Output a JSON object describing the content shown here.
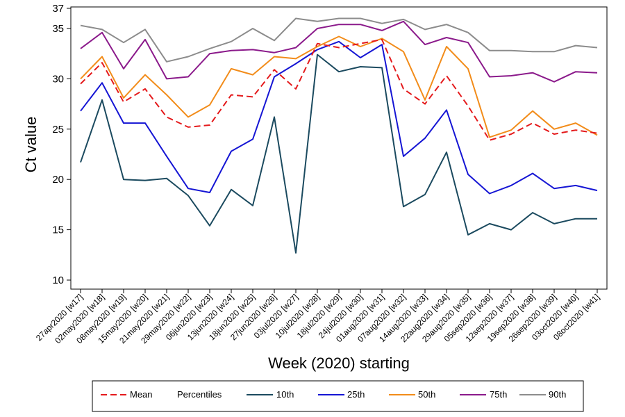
{
  "chart_data": {
    "type": "line",
    "xlabel": "Week (2020) starting",
    "ylabel": "Ct value",
    "ylim": [
      10,
      37
    ],
    "yticks": [
      10,
      15,
      20,
      25,
      30,
      35,
      37
    ],
    "grid": false,
    "legend_placement": "bottom",
    "legend_heading": "Percentiles",
    "categories": [
      "27apr2020 [w17]",
      "02may2020 [w18]",
      "08may2020 [w19]",
      "15may2020 [w20]",
      "21may2020 [w21]",
      "29may2020 [w22]",
      "06jun2020 [w23]",
      "13jun2020 [w24]",
      "18jun2020 [w25]",
      "27jun2020 [w26]",
      "03jul2020 [w27]",
      "10jul2020 [w28]",
      "18jul2020 [w29]",
      "24jul2020 [w30]",
      "01aug2020 [w31]",
      "07aug2020 [w32]",
      "14aug2020 [w33]",
      "22aug2020 [w34]",
      "29aug2020 [w35]",
      "05sep2020 [w36]",
      "12sep2020 [w37]",
      "19sep2020 [w38]",
      "26sep2020 [w39]",
      "03oct2020 [w40]",
      "08oct2020 [w41]"
    ],
    "series": [
      {
        "name": "Mean",
        "color": "#e41a1c",
        "dashed": true,
        "values": [
          29.5,
          31.6,
          27.7,
          29.0,
          26.2,
          25.2,
          25.4,
          28.4,
          28.2,
          30.9,
          29.0,
          33.5,
          33.1,
          33.5,
          33.9,
          29.0,
          27.5,
          30.3,
          27.3,
          23.9,
          24.5,
          25.6,
          24.5,
          24.9,
          24.6
        ]
      },
      {
        "name": "10th",
        "color": "#1b4a5f",
        "dashed": false,
        "values": [
          21.7,
          27.9,
          20.0,
          19.9,
          20.1,
          18.4,
          15.4,
          19.0,
          17.4,
          26.2,
          12.7,
          32.4,
          30.7,
          31.2,
          31.1,
          17.3,
          18.5,
          22.7,
          14.5,
          15.6,
          15.0,
          16.7,
          15.6,
          16.1,
          16.1
        ]
      },
      {
        "name": "25th",
        "color": "#1515d4",
        "dashed": false,
        "values": [
          26.8,
          29.6,
          25.6,
          25.6,
          22.3,
          19.1,
          18.7,
          22.8,
          24.0,
          30.2,
          31.5,
          32.9,
          33.7,
          32.1,
          33.4,
          22.3,
          24.1,
          26.9,
          20.5,
          18.6,
          19.4,
          20.6,
          19.1,
          19.4,
          18.9
        ]
      },
      {
        "name": "50th",
        "color": "#f28c1a",
        "dashed": false,
        "values": [
          30.0,
          32.2,
          28.1,
          30.4,
          28.4,
          26.2,
          27.4,
          31.0,
          30.4,
          32.2,
          32.0,
          33.2,
          34.2,
          33.2,
          34.0,
          32.7,
          27.9,
          33.2,
          31.0,
          24.2,
          24.9,
          26.8,
          25.0,
          25.6,
          24.4
        ]
      },
      {
        "name": "75th",
        "color": "#8b1a8b",
        "dashed": false,
        "values": [
          33.0,
          34.6,
          31.0,
          33.9,
          30.0,
          30.2,
          32.5,
          32.8,
          32.9,
          32.6,
          33.1,
          35.0,
          35.4,
          35.4,
          34.8,
          35.7,
          33.4,
          34.1,
          33.6,
          30.2,
          30.3,
          30.6,
          29.7,
          30.7,
          30.6
        ]
      },
      {
        "name": "90th",
        "color": "#8c8c8c",
        "dashed": false,
        "values": [
          35.3,
          34.9,
          33.6,
          34.9,
          31.7,
          32.2,
          33.0,
          33.7,
          35.0,
          33.8,
          36.0,
          35.7,
          36.0,
          36.0,
          35.5,
          35.9,
          34.9,
          35.4,
          34.6,
          32.8,
          32.8,
          32.7,
          32.7,
          33.3,
          33.1
        ]
      }
    ]
  }
}
